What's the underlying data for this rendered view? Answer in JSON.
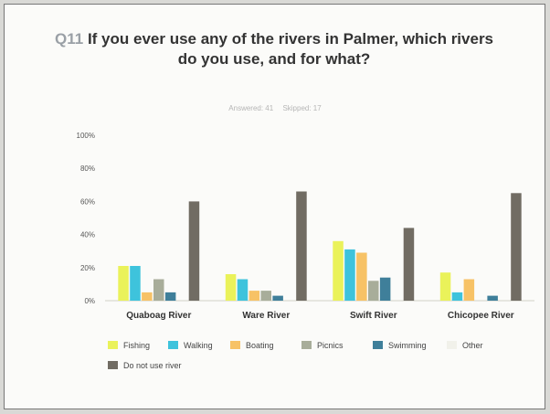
{
  "question_number": "Q11",
  "question_text": "If you ever use any of the rivers in Palmer, which rivers do you use, and for what?",
  "answered_label": "Answered: 41",
  "skipped_label": "Skipped: 17",
  "chart_data": {
    "type": "bar",
    "categories": [
      "Quaboag River",
      "Ware River",
      "Swift River",
      "Chicopee River"
    ],
    "y_ticks": [
      "0%",
      "20%",
      "40%",
      "60%",
      "80%",
      "100%"
    ],
    "ylim": [
      0,
      100
    ],
    "grid": false,
    "legend_position": "bottom",
    "series": [
      {
        "name": "Fishing",
        "color": "#eaf25a",
        "values": [
          21,
          16,
          36,
          17
        ]
      },
      {
        "name": "Walking",
        "color": "#3ec3dc",
        "values": [
          21,
          13,
          31,
          5
        ]
      },
      {
        "name": "Boating",
        "color": "#f7c266",
        "values": [
          5,
          6,
          29,
          13
        ]
      },
      {
        "name": "Picnics",
        "color": "#a8ad9a",
        "values": [
          13,
          6,
          12,
          0
        ]
      },
      {
        "name": "Swimming",
        "color": "#3f7f9a",
        "values": [
          5,
          3,
          14,
          3
        ]
      },
      {
        "name": "Other",
        "color": "#f1f1ea",
        "values": [
          0,
          0,
          0,
          0
        ]
      },
      {
        "name": "Do not use river",
        "color": "#716c63",
        "values": [
          60,
          66,
          44,
          65
        ]
      }
    ]
  }
}
